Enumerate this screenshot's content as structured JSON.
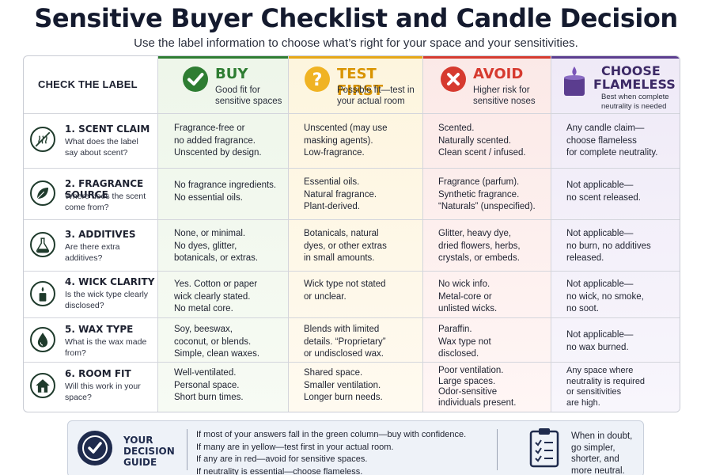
{
  "header": {
    "title": "Sensitive Buyer Checklist and Candle Decision",
    "subtitle": "Use the label information to choose what’s right for your space and your sensitivities."
  },
  "table": {
    "check_label": "CHECK THE LABEL",
    "columns": [
      {
        "title": "BUY",
        "subtitle_1": "Good fit for",
        "subtitle_2": "sensitive spaces",
        "color": "#2e7d32",
        "icon": "check-circle-icon"
      },
      {
        "title": "TEST FIRST",
        "subtitle_1": "Possible fit—test in",
        "subtitle_2": "your actual room",
        "color": "#e6a817",
        "icon": "question-circle-icon"
      },
      {
        "title": "AVOID",
        "subtitle_1": "Higher risk for",
        "subtitle_2": "sensitive noses",
        "color": "#d63a2f",
        "icon": "x-circle-icon"
      },
      {
        "title_1": "CHOOSE",
        "title_2": "FLAMELESS",
        "subtitle_1": "Best when complete",
        "subtitle_2": "neutrality is needed",
        "color": "#5b3d8f",
        "icon": "flameless-candle-icon"
      }
    ],
    "rows": [
      {
        "title": "1. SCENT CLAIM",
        "question": "What does the label say about scent?",
        "icon": "no-scent-icon",
        "buy": "Fragrance-free or\nno added fragrance.\nUnscented by design.",
        "test": "Unscented (may use\nmasking agents).\nLow-fragrance.",
        "avoid": "Scented.\nNaturally scented.\nClean scent / infused.",
        "flameless": "Any candle claim—\nchoose flameless\nfor complete neutrality."
      },
      {
        "title": "2. FRAGRANCE SOURCE",
        "question": "Where does the scent come from?",
        "icon": "leaf-icon",
        "buy": "No fragrance ingredients.\nNo essential oils.",
        "test": "Essential oils.\nNatural fragrance.\nPlant-derived.",
        "avoid": "Fragrance (parfum).\nSynthetic fragrance.\n“Naturals” (unspecified).",
        "flameless": "Not applicable—\nno scent released."
      },
      {
        "title": "3. ADDITIVES",
        "question": "Are there extra additives?",
        "icon": "flask-icon",
        "buy": "None, or minimal.\nNo dyes, glitter,\nbotanicals, or extras.",
        "test": "Botanicals, natural\ndyes, or other extras\nin small amounts.",
        "avoid": "Glitter, heavy dye,\ndried flowers, herbs,\ncrystals, or embeds.",
        "flameless": "Not applicable—\nno burn, no additives\nreleased."
      },
      {
        "title": "4. WICK CLARITY",
        "question": "Is the wick type clearly disclosed?",
        "icon": "candle-wick-icon",
        "buy": "Yes. Cotton or paper\nwick clearly stated.\nNo metal core.",
        "test": "Wick type not stated\nor unclear.",
        "avoid": "No wick info.\nMetal-core or\nunlisted wicks.",
        "flameless": "Not applicable—\nno wick, no smoke,\nno soot."
      },
      {
        "title": "5. WAX TYPE",
        "question": "What is the wax made from?",
        "icon": "wax-drop-icon",
        "buy": "Soy, beeswax,\ncoconut, or blends.\nSimple, clean waxes.",
        "test": "Blends with limited\ndetails. “Proprietary”\nor undisclosed wax.",
        "avoid": "Paraffin.\nWax type not\ndisclosed.",
        "flameless": "Not applicable—\nno wax burned."
      },
      {
        "title": "6. ROOM FIT",
        "question": "Will this work in your space?",
        "icon": "house-icon",
        "buy": "Well-ventilated.\nPersonal space.\nShort burn times.",
        "test": "Shared space.\nSmaller ventilation.\nLonger burn needs.",
        "avoid": "Poor ventilation.\nLarge spaces.\nOdor-sensitive\nindividuals present.",
        "flameless": "Any space where\nneutrality is required\nor sensitivities\nare high."
      }
    ]
  },
  "guide": {
    "title": "YOUR\nDECISION\nGUIDE",
    "lines": [
      "If most of your answers fall in the green column—buy with confidence.",
      "If many are in yellow—test first in your actual room.",
      "If any are in red—avoid for sensitive spaces.",
      "If neutrality is essential—choose flameless."
    ],
    "tip": "When in doubt,\ngo simpler,\nshorter, and\nmore neutral."
  }
}
